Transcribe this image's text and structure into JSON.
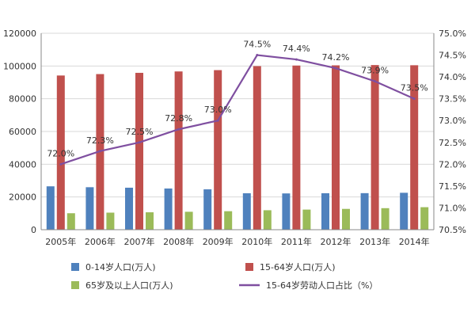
{
  "chart_data": {
    "type": "bar",
    "categories": [
      "2005年",
      "2006年",
      "2007年",
      "2008年",
      "2009年",
      "2010年",
      "2011年",
      "2012年",
      "2013年",
      "2014年"
    ],
    "series": [
      {
        "name": "0-14岁人口(万人)",
        "type": "bar",
        "axis": "left",
        "color": "#4f81bd",
        "values": [
          26504,
          25961,
          25660,
          25166,
          24659,
          22259,
          22164,
          22287,
          22329,
          22558
        ]
      },
      {
        "name": "15-64岁人口(万人)",
        "type": "bar",
        "axis": "left",
        "color": "#c0504d",
        "values": [
          94197,
          95068,
          95833,
          96680,
          97484,
          99938,
          100283,
          100403,
          100582,
          100469
        ]
      },
      {
        "name": "65岁及以上人口(万人)",
        "type": "bar",
        "axis": "left",
        "color": "#9bbb59",
        "values": [
          10055,
          10419,
          10636,
          10956,
          11307,
          11894,
          12288,
          12714,
          13161,
          13755
        ]
      },
      {
        "name": "15-64岁劳动人口占比（%）",
        "type": "line",
        "axis": "right",
        "color": "#7f4fa0",
        "values": [
          72.0,
          72.3,
          72.5,
          72.8,
          73.0,
          74.5,
          74.4,
          74.2,
          73.9,
          73.5
        ],
        "labels": [
          "72.0%",
          "72.3%",
          "72.5%",
          "72.8%",
          "73.0%",
          "74.5%",
          "74.4%",
          "74.2%",
          "73.9%",
          "73.5%"
        ]
      }
    ],
    "y_left": {
      "min": 0,
      "max": 120000,
      "ticks": [
        "0",
        "20000",
        "40000",
        "60000",
        "80000",
        "100000",
        "120000"
      ]
    },
    "y_right": {
      "min": 70.5,
      "max": 75.0,
      "ticks": [
        "70.5%",
        "71.0%",
        "71.5%",
        "72.0%",
        "72.5%",
        "73.0%",
        "73.5%",
        "74.0%",
        "74.5%",
        "75.0%"
      ]
    },
    "grid": true,
    "legend_position": "bottom"
  }
}
